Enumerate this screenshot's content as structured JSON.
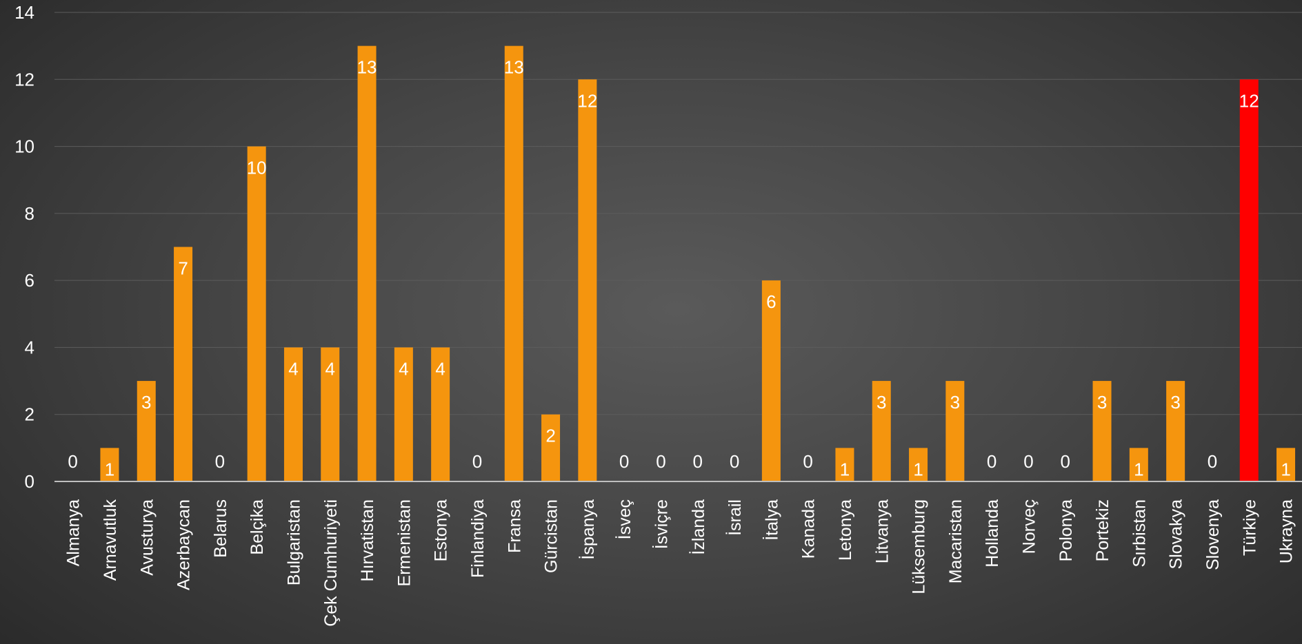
{
  "chart_data": {
    "type": "bar",
    "title": "",
    "xlabel": "",
    "ylabel": "",
    "ylim": [
      0,
      14
    ],
    "yticks": [
      "0",
      "2",
      "4",
      "6",
      "8",
      "10",
      "12",
      "14"
    ],
    "grid": true,
    "legend": "none",
    "categories": [
      "Almanya",
      "Arnavutluk",
      "Avusturya",
      "Azerbaycan",
      "Belarus",
      "Belçika",
      "Bulgaristan",
      "Çek Cumhuriyeti",
      "Hırvatistan",
      "Ermenistan",
      "Estonya",
      "Finlandiya",
      "Fransa",
      "Gürcistan",
      "İspanya",
      "İsveç",
      "İsviçre",
      "İzlanda",
      "İsrail",
      "İtalya",
      "Kanada",
      "Letonya",
      "Litvanya",
      "Lüksemburg",
      "Macaristan",
      "Hollanda",
      "Norveç",
      "Polonya",
      "Portekiz",
      "Sırbistan",
      "Slovakya",
      "Slovenya",
      "Türkiye",
      "Ukrayna"
    ],
    "values": [
      0,
      1,
      3,
      7,
      0,
      10,
      4,
      4,
      13,
      4,
      4,
      0,
      13,
      2,
      12,
      0,
      0,
      0,
      0,
      6,
      0,
      1,
      3,
      1,
      3,
      0,
      0,
      0,
      3,
      1,
      3,
      0,
      12,
      1
    ],
    "data_labels": [
      "0",
      "1",
      "3",
      "7",
      "0",
      "10",
      "4",
      "4",
      "13",
      "4",
      "4",
      "0",
      "13",
      "2",
      "12",
      "0",
      "0",
      "0",
      "0",
      "6",
      "0",
      "1",
      "3",
      "1",
      "3",
      "0",
      "0",
      "0",
      "3",
      "1",
      "3",
      "0",
      "12",
      "1"
    ],
    "colors": {
      "bar": "#f5950e",
      "highlight_bar": "#ff0000",
      "text": "#ffffff",
      "gridline": "#5c5c5c",
      "axis": "#bfbfbf"
    },
    "highlight_category": "Türkiye"
  }
}
